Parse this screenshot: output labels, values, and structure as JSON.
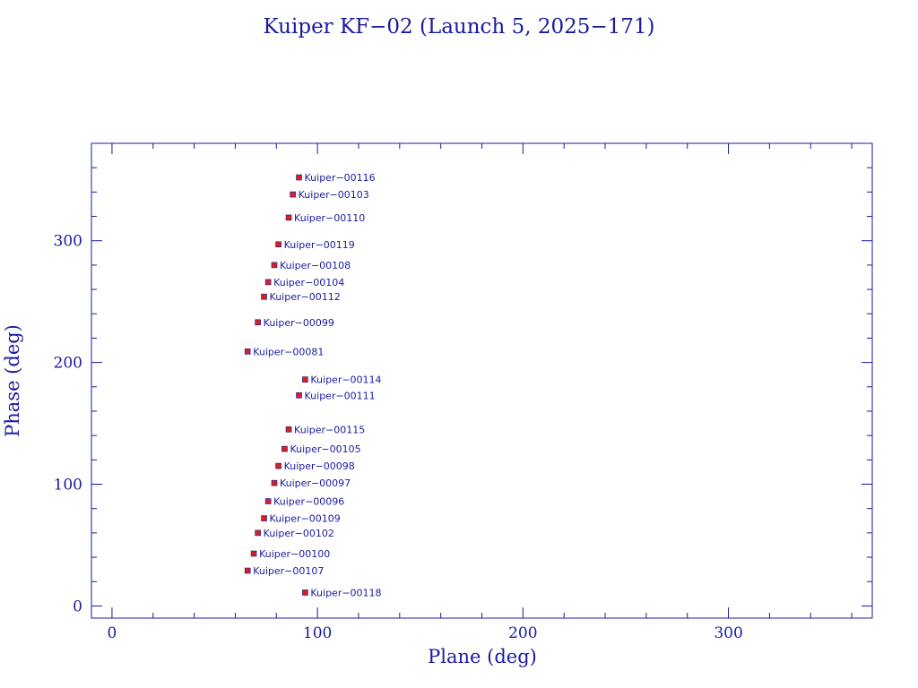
{
  "colors": {
    "axis": "#1a1aa0",
    "text": "#1a1aa0",
    "point_fill": "#d42020",
    "point_edge": "#1a1aa0"
  },
  "chart_data": {
    "type": "scatter",
    "title": "Kuiper KF−02 (Launch 5, 2025−171)",
    "xlabel": "Plane (deg)",
    "ylabel": "Phase (deg)",
    "xlim": [
      -10,
      370
    ],
    "ylim": [
      -10,
      380
    ],
    "xticks": [
      0,
      100,
      200,
      300
    ],
    "yticks": [
      0,
      100,
      200,
      300
    ],
    "grid": false,
    "points": [
      {
        "label": "Kuiper−00116",
        "x": 91,
        "y": 352
      },
      {
        "label": "Kuiper−00103",
        "x": 88,
        "y": 338
      },
      {
        "label": "Kuiper−00110",
        "x": 86,
        "y": 319
      },
      {
        "label": "Kuiper−00119",
        "x": 81,
        "y": 297
      },
      {
        "label": "Kuiper−00108",
        "x": 79,
        "y": 280
      },
      {
        "label": "Kuiper−00104",
        "x": 76,
        "y": 266
      },
      {
        "label": "Kuiper−00112",
        "x": 74,
        "y": 254
      },
      {
        "label": "Kuiper−00099",
        "x": 71,
        "y": 233
      },
      {
        "label": "Kuiper−00081",
        "x": 66,
        "y": 209
      },
      {
        "label": "Kuiper−00114",
        "x": 94,
        "y": 186
      },
      {
        "label": "Kuiper−00111",
        "x": 91,
        "y": 173
      },
      {
        "label": "Kuiper−00115",
        "x": 86,
        "y": 145
      },
      {
        "label": "Kuiper−00105",
        "x": 84,
        "y": 129
      },
      {
        "label": "Kuiper−00098",
        "x": 81,
        "y": 115
      },
      {
        "label": "Kuiper−00097",
        "x": 79,
        "y": 101
      },
      {
        "label": "Kuiper−00096",
        "x": 76,
        "y": 86
      },
      {
        "label": "Kuiper−00109",
        "x": 74,
        "y": 72
      },
      {
        "label": "Kuiper−00102",
        "x": 71,
        "y": 60
      },
      {
        "label": "Kuiper−00100",
        "x": 69,
        "y": 43
      },
      {
        "label": "Kuiper−00107",
        "x": 66,
        "y": 29
      },
      {
        "label": "Kuiper−00118",
        "x": 94,
        "y": 11
      }
    ]
  }
}
